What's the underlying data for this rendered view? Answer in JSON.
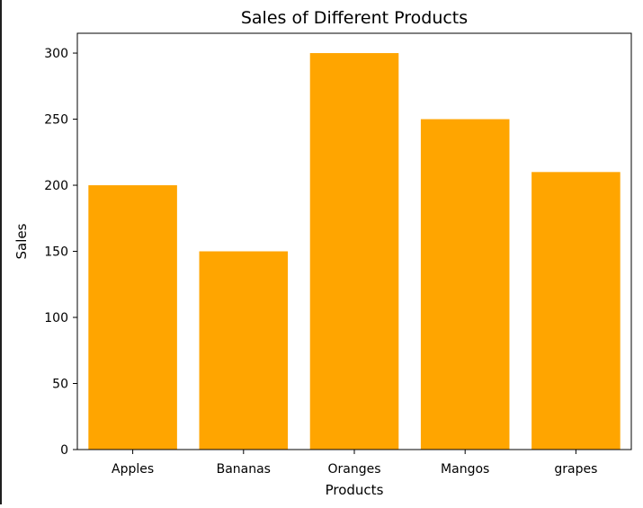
{
  "chart_data": {
    "type": "bar",
    "title": "Sales of Different Products",
    "xlabel": "Products",
    "ylabel": "Sales",
    "categories": [
      "Apples",
      "Bananas",
      "Oranges",
      "Mangos",
      "grapes"
    ],
    "values": [
      200,
      150,
      300,
      250,
      210
    ],
    "ylim": [
      0,
      315
    ],
    "yticks": [
      0,
      50,
      100,
      150,
      200,
      250,
      300
    ],
    "bar_color": "#FFA500",
    "grid": false,
    "legend": "none"
  }
}
